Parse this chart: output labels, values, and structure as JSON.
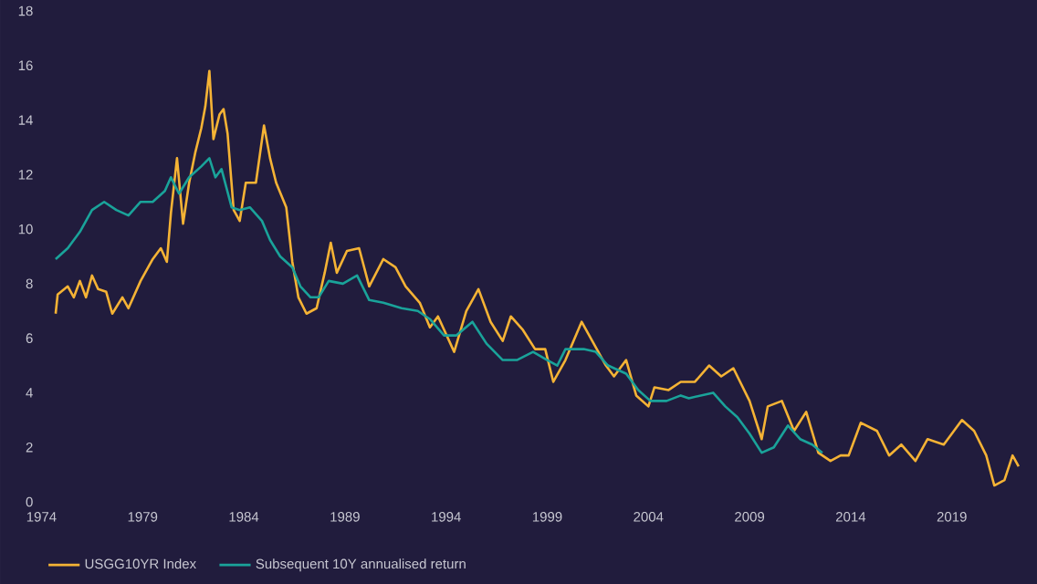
{
  "chart_data": {
    "type": "line",
    "xlim": [
      1974,
      2023
    ],
    "xticks": [
      1974,
      1979,
      1984,
      1989,
      1994,
      1999,
      2004,
      2009,
      2014,
      2019
    ],
    "ylim": [
      0,
      18
    ],
    "yticks": [
      0,
      2,
      4,
      6,
      8,
      10,
      12,
      14,
      16,
      18
    ],
    "grid": false,
    "legend": "bottom left",
    "marker": "none",
    "series": [
      {
        "name": "USGG10YR Index",
        "color": "#f5b335",
        "x": [
          1974.7,
          1974.8,
          1975.3,
          1975.6,
          1975.9,
          1976.2,
          1976.5,
          1976.8,
          1977.2,
          1977.5,
          1978.0,
          1978.3,
          1978.9,
          1979.5,
          1979.9,
          1980.2,
          1980.4,
          1980.7,
          1981.0,
          1981.3,
          1981.6,
          1981.9,
          1982.1,
          1982.3,
          1982.5,
          1982.8,
          1983.0,
          1983.2,
          1983.5,
          1983.8,
          1984.1,
          1984.6,
          1985.0,
          1985.3,
          1985.6,
          1986.1,
          1986.4,
          1986.7,
          1987.1,
          1987.6,
          1988.0,
          1988.3,
          1988.6,
          1989.1,
          1989.7,
          1990.2,
          1990.9,
          1991.5,
          1992.0,
          1992.7,
          1993.2,
          1993.6,
          1994.4,
          1995.0,
          1995.6,
          1996.2,
          1996.8,
          1997.2,
          1997.8,
          1998.4,
          1998.9,
          1999.3,
          1999.9,
          2000.7,
          2001.3,
          2001.9,
          2002.3,
          2002.9,
          2003.4,
          2004.0,
          2004.3,
          2005.0,
          2005.6,
          2006.3,
          2007.0,
          2007.6,
          2008.2,
          2009.0,
          2009.6,
          2009.9,
          2010.6,
          2011.2,
          2011.8,
          2012.4,
          2013.0,
          2013.5,
          2013.9,
          2014.5,
          2015.3,
          2015.9,
          2016.5,
          2017.2,
          2017.8,
          2018.6,
          2019.5,
          2020.1,
          2020.7,
          2021.1,
          2021.6,
          2022.0,
          2022.3
        ],
        "values": [
          6.9,
          7.6,
          7.9,
          7.5,
          8.1,
          7.5,
          8.3,
          7.8,
          7.7,
          6.9,
          7.5,
          7.1,
          8.1,
          8.9,
          9.3,
          8.8,
          10.6,
          12.6,
          10.2,
          11.7,
          12.8,
          13.7,
          14.5,
          15.8,
          13.3,
          14.2,
          14.4,
          13.5,
          10.7,
          10.3,
          11.7,
          11.7,
          13.8,
          12.6,
          11.7,
          10.8,
          8.8,
          7.5,
          6.9,
          7.1,
          8.4,
          9.5,
          8.4,
          9.2,
          9.3,
          7.9,
          8.9,
          8.6,
          7.9,
          7.3,
          6.4,
          6.8,
          5.5,
          7.0,
          7.8,
          6.6,
          5.9,
          6.8,
          6.3,
          5.6,
          5.6,
          4.4,
          5.2,
          6.6,
          5.8,
          5.0,
          4.6,
          5.2,
          3.9,
          3.5,
          4.2,
          4.1,
          4.4,
          4.4,
          5.0,
          4.6,
          4.9,
          3.7,
          2.3,
          3.5,
          3.7,
          2.6,
          3.3,
          1.8,
          1.5,
          1.7,
          1.7,
          2.9,
          2.6,
          1.7,
          2.1,
          1.5,
          2.3,
          2.1,
          3.0,
          2.6,
          1.7,
          0.6,
          0.8,
          1.7,
          1.3
        ]
      },
      {
        "name": "Subsequent 10Y annualised return",
        "color": "#1aa39a",
        "x": [
          1974.7,
          1975.3,
          1975.9,
          1976.5,
          1977.1,
          1977.7,
          1978.3,
          1978.9,
          1979.5,
          1980.1,
          1980.4,
          1980.8,
          1981.3,
          1981.9,
          1982.3,
          1982.6,
          1982.9,
          1983.4,
          1983.8,
          1984.3,
          1984.9,
          1985.3,
          1985.8,
          1986.4,
          1986.8,
          1987.3,
          1987.7,
          1988.2,
          1988.9,
          1989.6,
          1990.2,
          1990.9,
          1991.8,
          1992.6,
          1993.2,
          1993.9,
          1994.5,
          1995.3,
          1996.0,
          1996.8,
          1997.5,
          1998.3,
          1999.0,
          1999.5,
          1999.9,
          2000.8,
          2001.4,
          2002.0,
          2002.9,
          2003.5,
          2004.1,
          2004.9,
          2005.6,
          2006.0,
          2006.6,
          2007.2,
          2007.8,
          2008.4,
          2009.0,
          2009.6,
          2010.2,
          2010.9,
          2011.5,
          2012.1,
          2012.6
        ],
        "values": [
          8.9,
          9.3,
          9.9,
          10.7,
          11.0,
          10.7,
          10.5,
          11.0,
          11.0,
          11.4,
          11.9,
          11.3,
          11.9,
          12.3,
          12.6,
          11.9,
          12.2,
          10.8,
          10.7,
          10.8,
          10.3,
          9.6,
          9.0,
          8.6,
          7.9,
          7.5,
          7.5,
          8.1,
          8.0,
          8.3,
          7.4,
          7.3,
          7.1,
          7.0,
          6.7,
          6.1,
          6.1,
          6.6,
          5.8,
          5.2,
          5.2,
          5.5,
          5.2,
          5.0,
          5.6,
          5.6,
          5.5,
          5.0,
          4.7,
          4.1,
          3.7,
          3.7,
          3.9,
          3.8,
          3.9,
          4.0,
          3.5,
          3.1,
          2.5,
          1.8,
          2.0,
          2.8,
          2.3,
          2.1,
          1.8
        ]
      }
    ]
  }
}
